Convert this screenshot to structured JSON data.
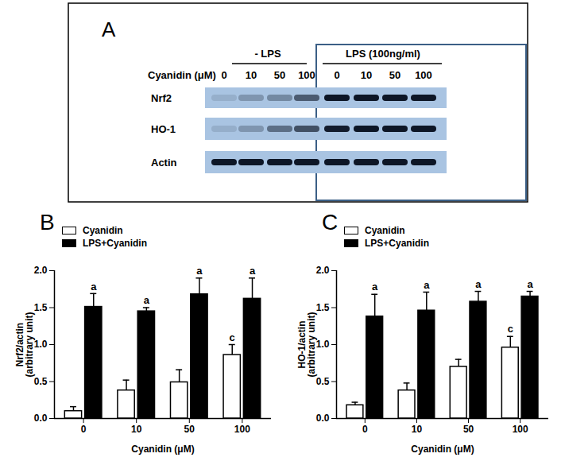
{
  "blot": {
    "panel": "A",
    "groups": [
      "- LPS",
      "LPS (100ng/ml)"
    ],
    "lane_axis_label": "Cyanidin (μM)",
    "lanes": [
      "0",
      "10",
      "50",
      "100"
    ],
    "rows": [
      "Nrf2",
      "HO-1",
      "Actin"
    ]
  },
  "chart_data": [
    {
      "type": "bar",
      "title": "B",
      "categories": [
        "0",
        "10",
        "50",
        "100"
      ],
      "xlabel": "Cyanidin (μM)",
      "ylabel": "Nrf2/actin\n(arbitrary unit)",
      "ylim": [
        0,
        2
      ],
      "yticks": [
        {
          "value": 0,
          "label": "0.0"
        },
        {
          "value": 0.5,
          "label": "0.5"
        },
        {
          "value": 1,
          "label": "1.0"
        },
        {
          "value": 1.5,
          "label": "1.5"
        },
        {
          "value": 2,
          "label": "2.0"
        }
      ],
      "grid": false,
      "legend": "top-left",
      "series": [
        {
          "name": "Cyanidin",
          "color": "#ffffff",
          "values": [
            0.1,
            0.38,
            0.49,
            0.86
          ],
          "error": [
            0.06,
            0.14,
            0.17,
            0.14
          ],
          "annotations": [
            null,
            null,
            null,
            "c"
          ]
        },
        {
          "name": "LPS+Cyanidin",
          "color": "#000000",
          "values": [
            1.51,
            1.45,
            1.68,
            1.62
          ],
          "error": [
            0.18,
            0.05,
            0.22,
            0.28
          ],
          "annotations": [
            "a",
            "a",
            "a",
            "a"
          ]
        }
      ]
    },
    {
      "type": "bar",
      "title": "C",
      "categories": [
        "0",
        "10",
        "50",
        "100"
      ],
      "xlabel": "Cyanidin (μM)",
      "ylabel": "HO-1/actin\n(arbitrary unit)",
      "ylim": [
        0,
        2
      ],
      "yticks": [
        {
          "value": 0,
          "label": "0.0"
        },
        {
          "value": 0.5,
          "label": "0.5"
        },
        {
          "value": 1,
          "label": "1.0"
        },
        {
          "value": 1.5,
          "label": "1.5"
        },
        {
          "value": 2,
          "label": "2.0"
        }
      ],
      "grid": false,
      "legend": "top-left",
      "series": [
        {
          "name": "Cyanidin",
          "color": "#ffffff",
          "values": [
            0.18,
            0.38,
            0.7,
            0.96
          ],
          "error": [
            0.04,
            0.1,
            0.1,
            0.15
          ],
          "annotations": [
            null,
            null,
            null,
            "c"
          ]
        },
        {
          "name": "LPS+Cyanidin",
          "color": "#000000",
          "values": [
            1.38,
            1.46,
            1.58,
            1.65
          ],
          "error": [
            0.3,
            0.25,
            0.14,
            0.07
          ],
          "annotations": [
            "a",
            "a",
            "a",
            "a"
          ]
        }
      ]
    }
  ]
}
